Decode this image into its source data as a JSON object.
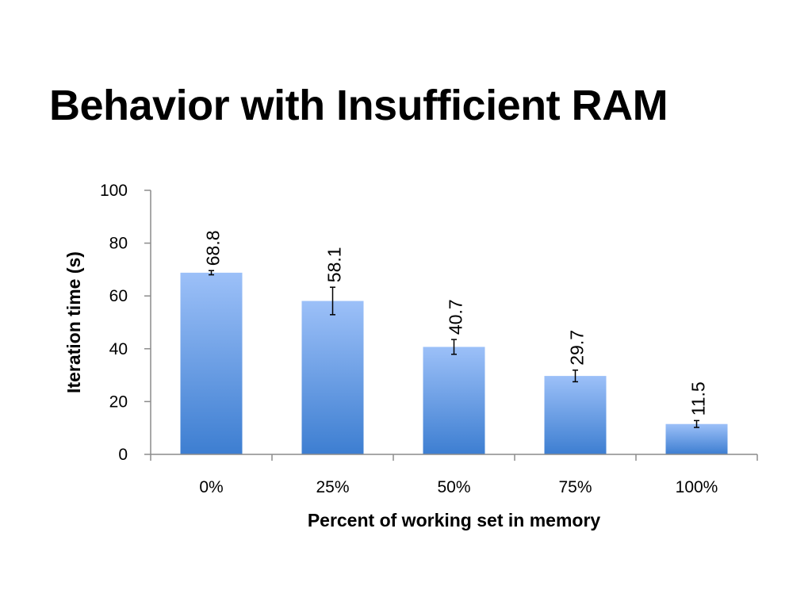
{
  "slide": {
    "title": "Behavior with Insufficient RAM"
  },
  "colors": {
    "bar_top": "#9cc0f8",
    "bar_bottom": "#3d7ed1",
    "axis": "#8c8c8c",
    "error_bar": "#000000"
  },
  "chart_data": {
    "type": "bar",
    "title": "",
    "xlabel": "Percent of working set in memory",
    "ylabel": "Iteration time (s)",
    "categories": [
      "0%",
      "25%",
      "50%",
      "75%",
      "100%"
    ],
    "values": [
      68.8,
      58.1,
      40.7,
      29.7,
      11.5
    ],
    "data_labels": [
      "68.8",
      "58.1",
      "40.7",
      "29.7",
      "11.5"
    ],
    "error": [
      0.8,
      5.2,
      2.8,
      2.2,
      1.3
    ],
    "ylim": [
      0,
      100
    ],
    "yticks": [
      0,
      20,
      40,
      60,
      80,
      100
    ],
    "ytick_labels": [
      "0",
      "20",
      "40",
      "60",
      "80",
      "100"
    ],
    "grid": false,
    "legend": "none"
  }
}
